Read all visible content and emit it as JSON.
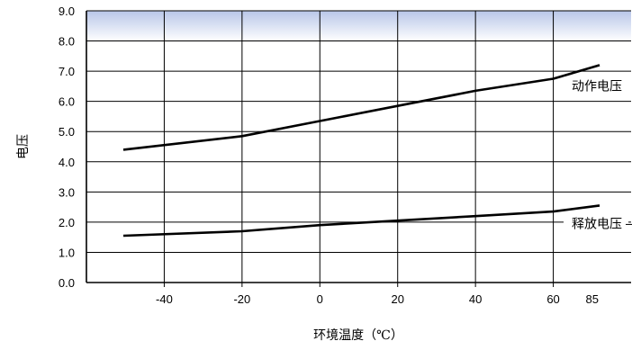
{
  "chart_data": {
    "type": "line",
    "title": "",
    "xlabel": "环境温度（℃）",
    "ylabel": "电压",
    "x": [
      -40,
      -20,
      0,
      20,
      40,
      60,
      85
    ],
    "x_tick_labels": [
      "-40",
      "-20",
      "0",
      "20",
      "40",
      "60",
      "85"
    ],
    "y_tick_labels": [
      "0.0",
      "1.0",
      "2.0",
      "3.0",
      "4.0",
      "5.0",
      "6.0",
      "7.0",
      "8.0",
      "9.0"
    ],
    "ylim": [
      0,
      9
    ],
    "grid": true,
    "series": [
      {
        "name": "动作电压",
        "values": [
          4.4,
          4.85,
          5.35,
          5.85,
          6.35,
          6.75,
          7.2
        ]
      },
      {
        "name": "释放电压",
        "values": [
          1.55,
          1.7,
          1.9,
          2.05,
          2.2,
          2.35,
          2.55
        ]
      }
    ],
    "colors": {
      "line": "#000000",
      "grid": "#000000",
      "band_top": "#b8c6e8",
      "band_bottom": "#ffffff"
    }
  }
}
